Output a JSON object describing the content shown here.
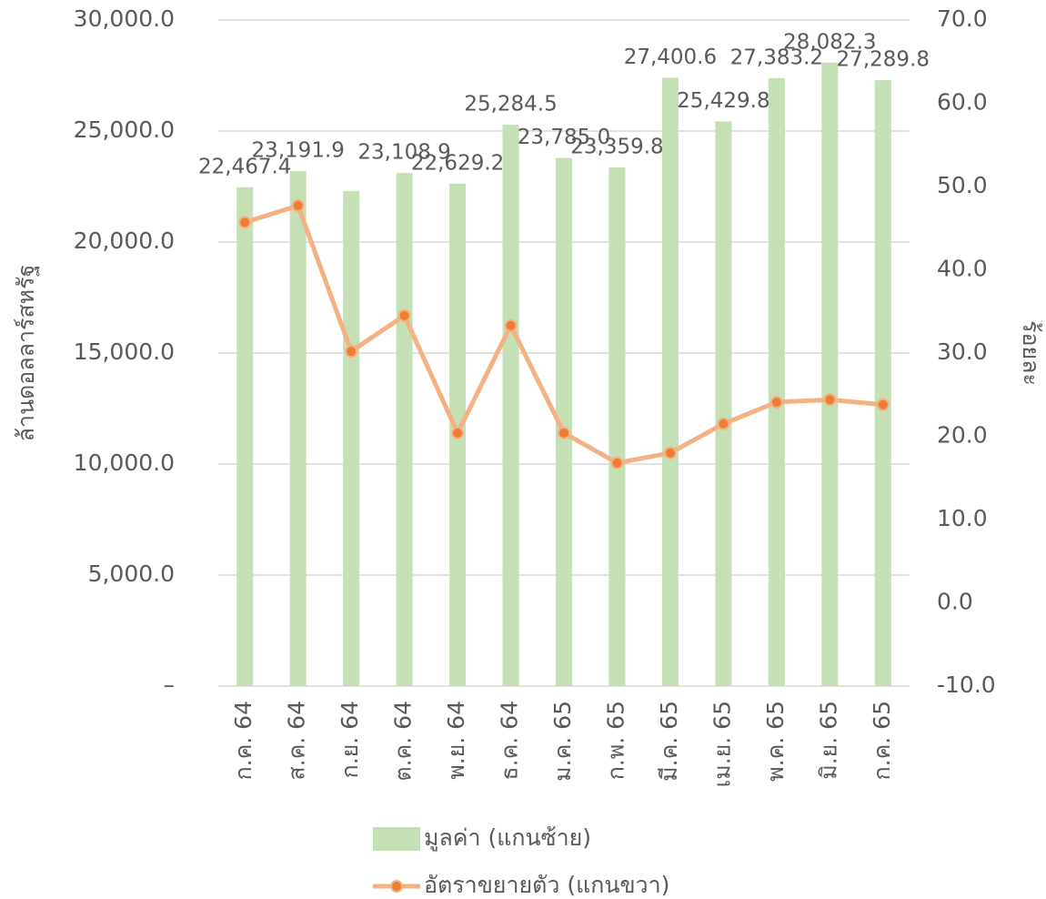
{
  "chart_data": {
    "type": "bar_line",
    "categories": [
      "ก.ค. 64",
      "ส.ค. 64",
      "ก.ย. 64",
      "ต.ค. 64",
      "พ.ย. 64",
      "ธ.ค. 64",
      "ม.ค. 65",
      "ก.พ. 65",
      "มี.ค. 65",
      "เม.ย. 65",
      "พ.ค. 65",
      "มิ.ย. 65",
      "ก.ค. 65"
    ],
    "y_label": "ล้านดอลลาร์สหรัฐ",
    "y2_label": "ร้อยละ",
    "series": [
      {
        "name": "มูลค่า (แกนซ้าย)",
        "type": "bar",
        "color": "#c5e0b4",
        "values": [
          22467.4,
          23191.9,
          22300,
          23108.9,
          22629.2,
          25284.5,
          23785.0,
          23359.8,
          27400.6,
          25429.8,
          27383.2,
          28082.3,
          27289.8
        ],
        "value_labels": [
          "22,467.4",
          "23,191.9",
          null,
          "23,108.9",
          "22,629.2",
          "25,284.5",
          "23,785.0",
          "23,359.8",
          "27,400.6",
          "25,429.8",
          "27,383.2",
          "28,082.3",
          "27,289.8"
        ]
      },
      {
        "name": "อัตราขยายตัว (แกนขวา)",
        "type": "line",
        "axis": "y2",
        "color": "#f4b183",
        "marker_color": "#ed7d31",
        "values": [
          45.7,
          47.7,
          30.2,
          34.5,
          20.4,
          33.3,
          20.4,
          16.8,
          18.0,
          21.5,
          24.1,
          24.4,
          23.8
        ]
      }
    ],
    "ylim": [
      0,
      30000
    ],
    "yticks": [
      {
        "value": 0,
        "label": "–"
      },
      {
        "value": 5000,
        "label": "5,000.0"
      },
      {
        "value": 10000,
        "label": "10,000.0"
      },
      {
        "value": 15000,
        "label": "15,000.0"
      },
      {
        "value": 20000,
        "label": "20,000.0"
      },
      {
        "value": 25000,
        "label": "25,000.0"
      },
      {
        "value": 30000,
        "label": "30,000.0"
      }
    ],
    "y2lim": [
      -10,
      70
    ],
    "y2ticks": [
      {
        "value": -10,
        "label": "-10.0"
      },
      {
        "value": 0,
        "label": "0.0"
      },
      {
        "value": 10,
        "label": "10.0"
      },
      {
        "value": 20,
        "label": "20.0"
      },
      {
        "value": 30,
        "label": "30.0"
      },
      {
        "value": 40,
        "label": "40.0"
      },
      {
        "value": 50,
        "label": "50.0"
      },
      {
        "value": 60,
        "label": "60.0"
      },
      {
        "value": 70,
        "label": "70.0"
      }
    ],
    "grid": true,
    "legend": "bottom"
  }
}
